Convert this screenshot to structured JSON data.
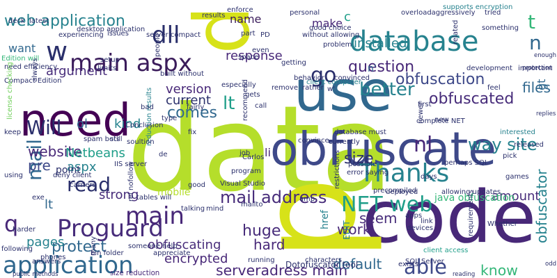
{
  "background": "#ffffff",
  "palette": [
    "#440154",
    "#482878",
    "#3e4989",
    "#31688e",
    "#26828e",
    "#1f9e89",
    "#35b779",
    "#6ece58",
    "#b5de2b",
    "#fde725"
  ],
  "words": [
    {
      "text": "data",
      "color": "#b5de2b"
    },
    {
      "text": "code",
      "color": "#482878"
    },
    {
      "text": "p",
      "color": "#d7e219"
    },
    {
      "text": "p",
      "color": "#d7e219"
    },
    {
      "text": "obfuscate",
      "color": "#3e4989"
    },
    {
      "text": "need",
      "color": "#440154"
    },
    {
      "text": "use",
      "color": "#31688e"
    },
    {
      "text": "application",
      "color": "#31688e"
    },
    {
      "text": "database",
      "color": "#26828e"
    },
    {
      "text": "Thanks",
      "color": "#26828e"
    },
    {
      "text": "Proguard",
      "color": "#472c7a"
    },
    {
      "text": "main aspx",
      "color": "#3b1c5b"
    },
    {
      "text": "NET web",
      "color": "#1f9e89"
    },
    {
      "text": "main",
      "color": "#482878"
    },
    {
      "text": "go",
      "color": "#2a2f6b"
    },
    {
      "text": "able",
      "color": "#3e4989"
    },
    {
      "text": "know",
      "color": "#35b779"
    },
    {
      "text": "better",
      "color": "#26828e"
    },
    {
      "text": "read",
      "color": "#2a2f6b"
    },
    {
      "text": "dll",
      "color": "#2a2f6b"
    },
    {
      "text": "web application",
      "color": "#26828e"
    },
    {
      "text": "Will",
      "color": "#2a2f6b"
    },
    {
      "text": "mail address",
      "color": "#472c7a"
    },
    {
      "text": "serveradress main",
      "color": "#482878"
    },
    {
      "text": "w",
      "color": "#2a2f6b"
    },
    {
      "text": "q",
      "color": "#482878"
    },
    {
      "text": "question",
      "color": "#482878"
    },
    {
      "text": "obfuscation",
      "color": "#3e4989"
    },
    {
      "text": "way site",
      "color": "#26828e"
    },
    {
      "text": "response",
      "color": "#482878"
    },
    {
      "text": "comes",
      "color": "#31688e"
    },
    {
      "text": "lt",
      "color": "#1f9e89"
    },
    {
      "text": "mail",
      "color": "#31688e"
    },
    {
      "text": "protect",
      "color": "#31688e"
    },
    {
      "text": "obfuscated",
      "color": "#472c7a"
    },
    {
      "text": "website",
      "color": "#482878"
    },
    {
      "text": "n",
      "color": "#31688e"
    },
    {
      "text": "t",
      "color": "#35b779"
    },
    {
      "text": "nl",
      "color": "#482878"
    },
    {
      "text": "size",
      "color": "#2a2f6b"
    },
    {
      "text": "installed",
      "color": "#26828e"
    },
    {
      "text": "argument",
      "color": "#472c7a"
    },
    {
      "text": "kind",
      "color": "#26828e"
    },
    {
      "text": "pre",
      "color": "#3e4989"
    },
    {
      "text": "aspx",
      "color": "#26828e"
    },
    {
      "text": "strong",
      "color": "#472c7a"
    },
    {
      "text": "huge",
      "color": "#472c7a"
    },
    {
      "text": "hard",
      "color": "#482878"
    },
    {
      "text": "work",
      "color": "#482878"
    },
    {
      "text": "seem",
      "color": "#472c7a"
    },
    {
      "text": "amount",
      "color": "#472c7a"
    },
    {
      "text": "default",
      "color": "#31688e"
    },
    {
      "text": "obfuscating",
      "color": "#472c7a"
    },
    {
      "text": "pages",
      "color": "#26828e"
    },
    {
      "text": "encrypted",
      "color": "#482878"
    },
    {
      "text": "href",
      "color": "#26828e"
    },
    {
      "text": "obfuscator",
      "color": "#26828e"
    },
    {
      "text": "files",
      "color": "#31688e"
    },
    {
      "text": "gt",
      "color": "#31688e"
    },
    {
      "text": "version",
      "color": "#482878"
    },
    {
      "text": "current",
      "color": "#2a2f6b"
    },
    {
      "text": "make",
      "color": "#482878"
    },
    {
      "text": "want",
      "color": "#31688e"
    },
    {
      "text": "name",
      "color": "#3b1c5b"
    },
    {
      "text": "lt",
      "color": "#31688e"
    },
    {
      "text": "Netbeans",
      "color": "#1f9e89"
    },
    {
      "text": "mobile",
      "color": "#b5de2b"
    },
    {
      "text": "point",
      "color": "#2a2f6b"
    },
    {
      "text": "ol",
      "color": "#31688e"
    },
    {
      "text": "li",
      "color": "#482878"
    },
    {
      "text": "c",
      "color": "#1f9e89"
    },
    {
      "text": "n'",
      "color": "#31688e"
    },
    {
      "text": "EDIT",
      "color": "#26828e"
    },
    {
      "text": "desktop application",
      "color": "#2a2f6b"
    },
    {
      "text": "Compact Edition",
      "color": "#2a2f6b"
    },
    {
      "text": "need efficiency",
      "color": "#2a2f6b"
    },
    {
      "text": "java obfuscation",
      "color": "#35b779"
    },
    {
      "text": "reduction results",
      "color": "#26828e"
    },
    {
      "text": "Visual Studio",
      "color": "#2a2f6b"
    },
    {
      "text": "SQL Server",
      "color": "#2a2f6b"
    },
    {
      "text": "Dotofuscator tool",
      "color": "#2a2f6b"
    },
    {
      "text": "size reduction",
      "color": "#482878"
    },
    {
      "text": "public methods",
      "color": "#2a2f6b"
    },
    {
      "text": "client access",
      "color": "#1f9e89"
    },
    {
      "text": "client computer",
      "color": "#26828e"
    },
    {
      "text": "supports encryption",
      "color": "#26828e"
    },
    {
      "text": "without allowing",
      "color": "#2a2f6b"
    },
    {
      "text": "good choice",
      "color": "#2a2f6b"
    },
    {
      "text": "database must",
      "color": "#2a2f6b"
    },
    {
      "text": "perhaps SQL",
      "color": "#2a2f6b"
    },
    {
      "text": "error saying",
      "color": "#2a2f6b"
    },
    {
      "text": "someone help",
      "color": "#2a2f6b"
    },
    {
      "text": "bin folder",
      "color": "#2a2f6b"
    },
    {
      "text": "tables will",
      "color": "#2a2f6b"
    },
    {
      "text": "allowing updates",
      "color": "#2a2f6b"
    },
    {
      "text": "built without",
      "color": "#2a2f6b"
    },
    {
      "text": "deployed",
      "color": "#2a2f6b"
    },
    {
      "text": "currently",
      "color": "#2a2f6b"
    },
    {
      "text": "precompiled",
      "color": "#2a2f6b"
    },
    {
      "text": "protection",
      "color": "#2a2f6b"
    },
    {
      "text": "development",
      "color": "#2a2f6b"
    },
    {
      "text": "interested",
      "color": "#26828e"
    },
    {
      "text": "released",
      "color": "#2a2f6b"
    },
    {
      "text": "Conclusion",
      "color": "#2a2f6b"
    },
    {
      "text": "enforce",
      "color": "#2a2f6b"
    },
    {
      "text": "convinced",
      "color": "#2a2f6b"
    },
    {
      "text": "problem",
      "color": "#2a2f6b"
    },
    {
      "text": "Edition will",
      "color": "#35b779"
    },
    {
      "text": "license checking",
      "color": "#6ece58"
    },
    {
      "text": "rel nofollow",
      "color": "#2a2f6b"
    },
    {
      "text": "spam bots",
      "color": "#2a2f6b"
    },
    {
      "text": "soultion",
      "color": "#2a2f6b"
    },
    {
      "text": "IIS server",
      "color": "#2a2f6b"
    },
    {
      "text": "deny client",
      "color": "#2a2f6b"
    },
    {
      "text": "carriers",
      "color": "#2a2f6b"
    },
    {
      "text": "talking",
      "color": "#2a2f6b"
    },
    {
      "text": "reading",
      "color": "#2a2f6b"
    },
    {
      "text": "following",
      "color": "#2a2f6b"
    },
    {
      "text": "phones",
      "color": "#2a2f6b"
    },
    {
      "text": "harder",
      "color": "#2a2f6b"
    },
    {
      "text": "appreciate",
      "color": "#2a2f6b"
    },
    {
      "text": "running",
      "color": "#2a2f6b"
    },
    {
      "text": "characters",
      "color": "#2a2f6b"
    },
    {
      "text": "exists",
      "color": "#2a2f6b"
    },
    {
      "text": "apps",
      "color": "#2a2f6b"
    },
    {
      "text": "devices",
      "color": "#2a2f6b"
    },
    {
      "text": "requirements",
      "color": "#2a2f6b"
    },
    {
      "text": "odd",
      "color": "#2a2f6b"
    },
    {
      "text": "issues",
      "color": "#2a2f6b"
    },
    {
      "text": "experiencing",
      "color": "#2a2f6b"
    },
    {
      "text": "server compact",
      "color": "#2a2f6b"
    },
    {
      "text": "setup",
      "color": "#2a2f6b"
    },
    {
      "text": "limits",
      "color": "#2a2f6b"
    },
    {
      "text": "results",
      "color": "#2a2f6b"
    },
    {
      "text": "personal",
      "color": "#2a2f6b"
    },
    {
      "text": "overloadaggressively",
      "color": "#2a2f6b"
    },
    {
      "text": "tried",
      "color": "#2a2f6b"
    },
    {
      "text": "something",
      "color": "#2a2f6b"
    },
    {
      "text": "enough",
      "color": "#2a2f6b"
    },
    {
      "text": "important",
      "color": "#2a2f6b"
    },
    {
      "text": "replies",
      "color": "#2a2f6b"
    },
    {
      "text": "especially",
      "color": "#2a2f6b"
    },
    {
      "text": "remove",
      "color": "#2a2f6b"
    },
    {
      "text": "rather",
      "color": "#2a2f6b"
    },
    {
      "text": "feel",
      "color": "#2a2f6b"
    },
    {
      "text": "complete NET",
      "color": "#2a2f6b"
    },
    {
      "text": "first",
      "color": "#2a2f6b"
    },
    {
      "text": "newer",
      "color": "#2a2f6b"
    },
    {
      "text": "pick",
      "color": "#2a2f6b"
    },
    {
      "text": "games",
      "color": "#2a2f6b"
    },
    {
      "text": "possible",
      "color": "#2a2f6b"
    },
    {
      "text": "convince",
      "color": "#2a2f6b"
    },
    {
      "text": "job",
      "color": "#2a2f6b"
    },
    {
      "text": "Carlos",
      "color": "#2a2f6b"
    },
    {
      "text": "program",
      "color": "#2a2f6b"
    },
    {
      "text": "gets",
      "color": "#2a2f6b"
    },
    {
      "text": "call",
      "color": "#2a2f6b"
    },
    {
      "text": "fairly",
      "color": "#2a2f6b"
    },
    {
      "text": "type",
      "color": "#2a2f6b"
    },
    {
      "text": "bad",
      "color": "#2a2f6b"
    },
    {
      "text": "still",
      "color": "#2a2f6b"
    },
    {
      "text": "fix",
      "color": "#2a2f6b"
    },
    {
      "text": "good",
      "color": "#2a2f6b"
    },
    {
      "text": "mind",
      "color": "#2a2f6b"
    },
    {
      "text": "mailto",
      "color": "#2a2f6b"
    },
    {
      "text": "amp",
      "color": "#2a2f6b"
    },
    {
      "text": "restrictions",
      "color": "#2a2f6b"
    },
    {
      "text": "days",
      "color": "#2a2f6b"
    },
    {
      "text": "link",
      "color": "#2a2f6b"
    },
    {
      "text": "Whether",
      "color": "#2a2f6b"
    },
    {
      "text": "deck",
      "color": "#2a2f6b"
    },
    {
      "text": "latest",
      "color": "#2a2f6b"
    },
    {
      "text": "always",
      "color": "#2a2f6b"
    },
    {
      "text": "using",
      "color": "#2a2f6b"
    },
    {
      "text": "keep",
      "color": "#2a2f6b"
    },
    {
      "text": "exe",
      "color": "#2a2f6b"
    },
    {
      "text": "people",
      "color": "#2a2f6b"
    },
    {
      "text": "space",
      "color": "#2a2f6b"
    },
    {
      "text": "part",
      "color": "#2a2f6b"
    },
    {
      "text": "PD",
      "color": "#2a2f6b"
    },
    {
      "text": "even",
      "color": "#2a2f6b"
    },
    {
      "text": "getting",
      "color": "#2a2f6b"
    },
    {
      "text": "behavior",
      "color": "#2a2f6b"
    },
    {
      "text": "many",
      "color": "#2a2f6b"
    },
    {
      "text": "answers",
      "color": "#2a2f6b"
    },
    {
      "text": "related",
      "color": "#2a2f6b"
    },
    {
      "text": "de",
      "color": "#2a2f6b"
    },
    {
      "text": "w'",
      "color": "#2a2f6b"
    },
    {
      "text": "new",
      "color": "#2a2f6b"
    },
    {
      "text": "recommend",
      "color": "#2a2f6b"
    }
  ]
}
